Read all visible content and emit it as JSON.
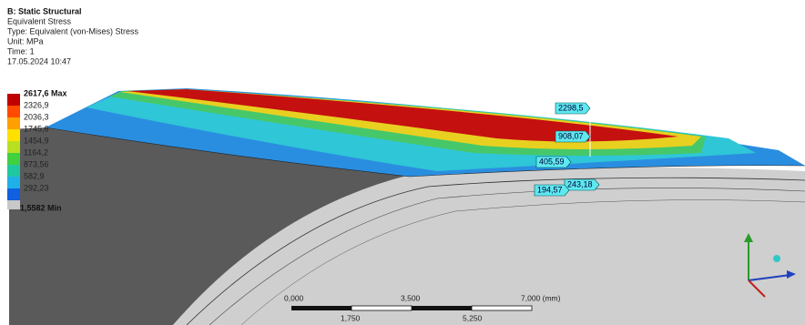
{
  "header": {
    "title": "B: Static Structural",
    "lines": [
      "Equivalent Stress",
      "Type: Equivalent (von-Mises) Stress",
      "Unit: MPa",
      "Time: 1",
      "17.05.2024 10:47"
    ]
  },
  "legend": [
    "2617,6 Max",
    "2326,9",
    "2036,3",
    "1745,6",
    "1454,9",
    "1164,2",
    "873,56",
    "582,9",
    "292,23",
    "1,5582 Min"
  ],
  "probes": [
    "2298,5",
    "908,07",
    "405,59",
    "243,18",
    "194,57"
  ],
  "scale_bar": {
    "top": [
      "0,000",
      "3,500",
      "7,000 (mm)"
    ],
    "bottom": [
      "1,750",
      "5,250"
    ]
  }
}
